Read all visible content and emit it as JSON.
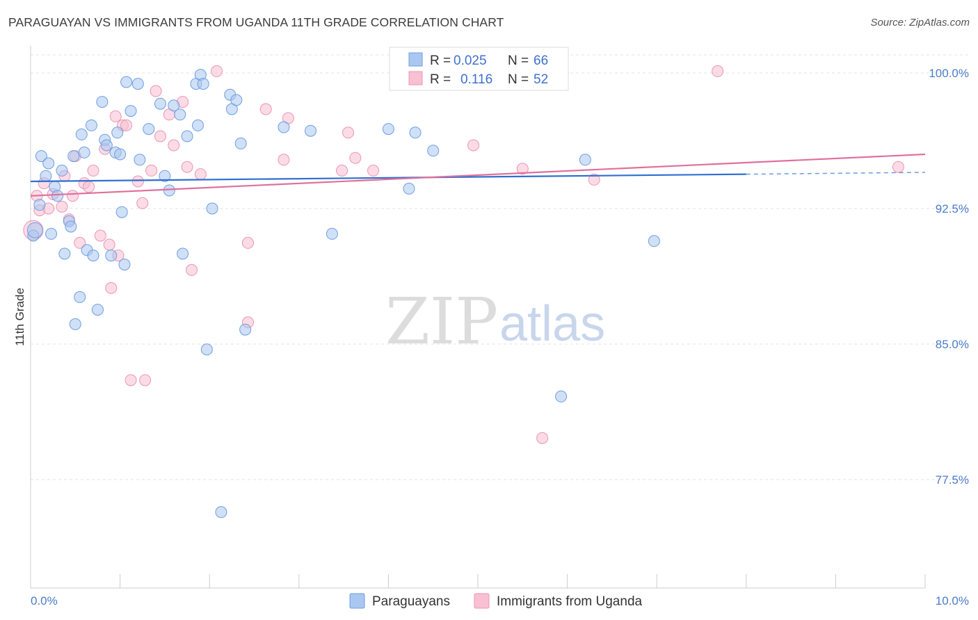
{
  "title": "PARAGUAYAN VS IMMIGRANTS FROM UGANDA 11TH GRADE CORRELATION CHART",
  "source": "Source: ZipAtlas.com",
  "watermark": {
    "zip": "ZIP",
    "atlas": "atlas"
  },
  "legend_top": {
    "rows": [
      {
        "r_label": "R =",
        "r_value": "0.025",
        "n_label": "N =",
        "n_value": "66",
        "color": "#9dbff0"
      },
      {
        "r_label": "R =",
        "r_value": "0.116",
        "n_label": "N =",
        "n_value": "52",
        "color": "#f5b3c8"
      }
    ]
  },
  "legend_bottom": [
    {
      "label": "Paraguayans",
      "color": "#9dbff0"
    },
    {
      "label": "Immigrants from Uganda",
      "color": "#f5b3c8"
    }
  ],
  "colors": {
    "blue_fill": "#a9c7f0",
    "blue_stroke": "#6d9ee0",
    "blue_line": "#2e6fd0",
    "pink_fill": "#f8c0d2",
    "pink_stroke": "#ee93b2",
    "pink_line": "#e0709a",
    "axis_text": "#4a7cc9",
    "grid": "#e3e3e3"
  },
  "chart_data": {
    "type": "scatter",
    "title": "PARAGUAYAN VS IMMIGRANTS FROM UGANDA 11TH GRADE CORRELATION CHART",
    "ylabel": "11th Grade",
    "xlabel": "",
    "xlim": [
      0,
      10
    ],
    "ylim": [
      71.5,
      101.5
    ],
    "y_ticks": [
      {
        "value": 100,
        "label": "100.0%"
      },
      {
        "value": 92.5,
        "label": "92.5%"
      },
      {
        "value": 85,
        "label": "85.0%"
      },
      {
        "value": 77.5,
        "label": "77.5%"
      }
    ],
    "x_ticks": [
      {
        "value": 0,
        "label": "0.0%"
      },
      {
        "value": 10,
        "label": "10.0%"
      }
    ],
    "grid": true,
    "legend_position": "top-center",
    "series": [
      {
        "name": "Paraguayans",
        "color": "#9dbff0",
        "trend": {
          "x0": 0,
          "y0": 94.0,
          "x1": 8.0,
          "y1": 94.4,
          "dash_to_x": 10,
          "dash_to_y": 94.5
        },
        "points": [
          [
            0.03,
            91.0
          ],
          [
            0.05,
            91.3
          ],
          [
            0.1,
            92.7
          ],
          [
            0.12,
            95.4
          ],
          [
            0.17,
            94.3
          ],
          [
            0.2,
            95.0
          ],
          [
            0.23,
            91.1
          ],
          [
            0.27,
            93.7
          ],
          [
            0.3,
            93.2
          ],
          [
            0.35,
            94.6
          ],
          [
            0.38,
            90.0
          ],
          [
            0.43,
            91.8
          ],
          [
            0.45,
            91.5
          ],
          [
            0.48,
            95.4
          ],
          [
            0.5,
            86.1
          ],
          [
            0.55,
            87.6
          ],
          [
            0.57,
            96.6
          ],
          [
            0.6,
            95.6
          ],
          [
            0.63,
            90.2
          ],
          [
            0.68,
            97.1
          ],
          [
            0.7,
            89.9
          ],
          [
            0.75,
            86.9
          ],
          [
            0.8,
            98.4
          ],
          [
            0.83,
            96.3
          ],
          [
            0.85,
            96.0
          ],
          [
            0.9,
            89.9
          ],
          [
            0.95,
            95.6
          ],
          [
            0.97,
            96.7
          ],
          [
            1.0,
            95.5
          ],
          [
            1.02,
            92.3
          ],
          [
            1.05,
            89.4
          ],
          [
            1.07,
            99.5
          ],
          [
            1.12,
            97.9
          ],
          [
            1.2,
            99.4
          ],
          [
            1.22,
            95.2
          ],
          [
            1.32,
            96.9
          ],
          [
            1.45,
            98.3
          ],
          [
            1.5,
            94.3
          ],
          [
            1.55,
            93.5
          ],
          [
            1.6,
            98.2
          ],
          [
            1.67,
            97.7
          ],
          [
            1.7,
            90.0
          ],
          [
            1.75,
            96.5
          ],
          [
            1.85,
            99.4
          ],
          [
            1.87,
            97.1
          ],
          [
            1.9,
            99.9
          ],
          [
            1.93,
            99.4
          ],
          [
            1.97,
            84.7
          ],
          [
            2.03,
            92.5
          ],
          [
            2.13,
            75.7
          ],
          [
            2.23,
            98.8
          ],
          [
            2.25,
            98.0
          ],
          [
            2.3,
            98.5
          ],
          [
            2.35,
            96.1
          ],
          [
            2.4,
            85.8
          ],
          [
            2.83,
            97.0
          ],
          [
            3.13,
            96.8
          ],
          [
            3.37,
            91.1
          ],
          [
            4.0,
            96.9
          ],
          [
            4.23,
            93.6
          ],
          [
            4.3,
            96.7
          ],
          [
            4.5,
            95.7
          ],
          [
            5.93,
            82.1
          ],
          [
            5.95,
            100.0
          ],
          [
            6.2,
            95.2
          ],
          [
            6.97,
            90.7
          ]
        ]
      },
      {
        "name": "Immigrants from Uganda",
        "color": "#f5b3c8",
        "trend": {
          "x0": 0,
          "y0": 93.2,
          "x1": 10,
          "y1": 95.5
        },
        "points": [
          [
            0.03,
            91.3
          ],
          [
            0.07,
            93.2
          ],
          [
            0.1,
            92.4
          ],
          [
            0.15,
            93.9
          ],
          [
            0.2,
            92.5
          ],
          [
            0.25,
            93.3
          ],
          [
            0.35,
            92.6
          ],
          [
            0.38,
            94.3
          ],
          [
            0.43,
            91.9
          ],
          [
            0.47,
            93.2
          ],
          [
            0.5,
            95.4
          ],
          [
            0.55,
            90.6
          ],
          [
            0.6,
            93.9
          ],
          [
            0.65,
            93.7
          ],
          [
            0.7,
            94.6
          ],
          [
            0.78,
            91.0
          ],
          [
            0.83,
            95.8
          ],
          [
            0.88,
            90.5
          ],
          [
            0.9,
            88.1
          ],
          [
            0.95,
            97.6
          ],
          [
            0.98,
            89.9
          ],
          [
            1.03,
            97.1
          ],
          [
            1.07,
            97.1
          ],
          [
            1.12,
            83.0
          ],
          [
            1.2,
            94.0
          ],
          [
            1.25,
            92.8
          ],
          [
            1.28,
            83.0
          ],
          [
            1.35,
            94.6
          ],
          [
            1.4,
            99.0
          ],
          [
            1.45,
            96.5
          ],
          [
            1.55,
            97.7
          ],
          [
            1.6,
            96.0
          ],
          [
            1.7,
            98.4
          ],
          [
            1.75,
            94.8
          ],
          [
            1.8,
            89.1
          ],
          [
            1.9,
            94.4
          ],
          [
            2.08,
            100.1
          ],
          [
            2.43,
            90.6
          ],
          [
            2.43,
            86.2
          ],
          [
            2.63,
            98.0
          ],
          [
            2.83,
            95.2
          ],
          [
            2.88,
            97.5
          ],
          [
            3.48,
            94.6
          ],
          [
            3.55,
            96.7
          ],
          [
            3.63,
            95.3
          ],
          [
            3.83,
            94.6
          ],
          [
            4.95,
            96.0
          ],
          [
            5.5,
            94.7
          ],
          [
            5.72,
            79.8
          ],
          [
            6.3,
            94.1
          ],
          [
            7.68,
            100.1
          ],
          [
            9.7,
            94.8
          ]
        ]
      }
    ]
  }
}
